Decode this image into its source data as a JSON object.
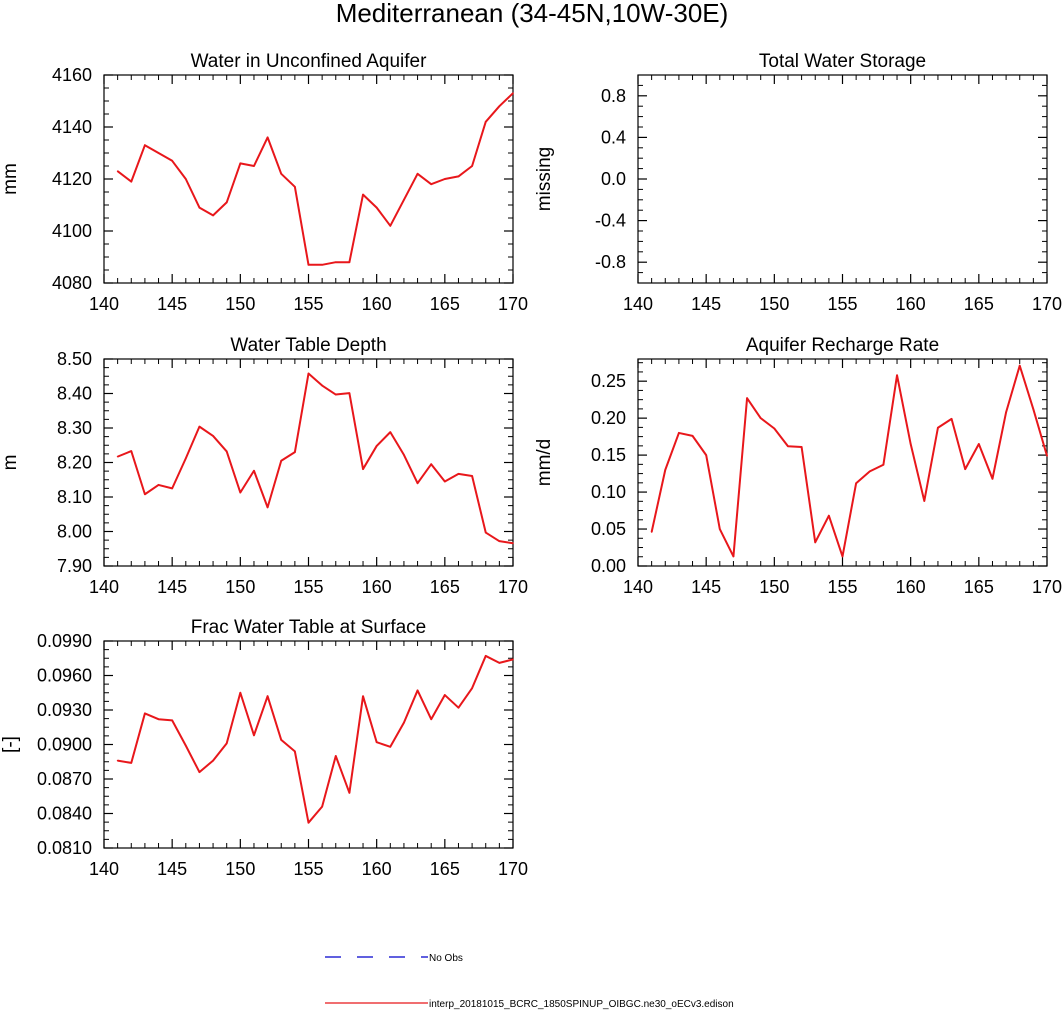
{
  "figure_title": "Mediterranean (34-45N,10W-30E)",
  "chart_data": [
    {
      "id": "unconfined",
      "type": "line",
      "title": "Water in Unconfined Aquifer",
      "xlabel": "",
      "ylabel": "mm",
      "xlim": [
        140,
        170
      ],
      "ylim": [
        4080,
        4160
      ],
      "xticks": [
        140,
        145,
        150,
        155,
        160,
        165,
        170
      ],
      "xtick_labels": [
        "140",
        "145",
        "150",
        "155",
        "160",
        "165",
        "170"
      ],
      "yticks": [
        4080,
        4100,
        4120,
        4140,
        4160
      ],
      "ytick_labels": [
        "4080",
        "4100",
        "4120",
        "4140",
        "4160"
      ],
      "series": [
        {
          "name": "interp_20181015_BCRC_1850SPINUP_OIBGC.ne30_oECv3.edison",
          "color": "#e8171b",
          "x": [
            141,
            142,
            143,
            144,
            145,
            146,
            147,
            148,
            149,
            150,
            151,
            152,
            153,
            154,
            155,
            156,
            157,
            158,
            159,
            160,
            161,
            162,
            163,
            164,
            165,
            166,
            167,
            168,
            169,
            170
          ],
          "values": [
            4123,
            4119,
            4133,
            4130,
            4127,
            4120,
            4109,
            4106,
            4111,
            4126,
            4125,
            4136,
            4122,
            4117,
            4087,
            4087,
            4088,
            4088,
            4114,
            4109,
            4102,
            4112,
            4122,
            4118,
            4120,
            4121,
            4125,
            4142,
            4148,
            4153
          ]
        }
      ]
    },
    {
      "id": "tws",
      "type": "line",
      "title": "Total Water Storage",
      "xlabel": "",
      "ylabel": "missing",
      "xlim": [
        140,
        170
      ],
      "ylim": [
        -1,
        1
      ],
      "xticks": [
        140,
        145,
        150,
        155,
        160,
        165,
        170
      ],
      "xtick_labels": [
        "140",
        "145",
        "150",
        "155",
        "160",
        "165",
        "170"
      ],
      "yticks": [
        -0.8,
        -0.4,
        0.0,
        0.4,
        0.8
      ],
      "ytick_labels": [
        "-0.8",
        "-0.4",
        "0.0",
        "0.4",
        "0.8"
      ],
      "series": []
    },
    {
      "id": "wtd",
      "type": "line",
      "title": "Water Table Depth",
      "xlabel": "",
      "ylabel": "m",
      "xlim": [
        140,
        170
      ],
      "ylim": [
        7.9,
        8.5
      ],
      "xticks": [
        140,
        145,
        150,
        155,
        160,
        165,
        170
      ],
      "xtick_labels": [
        "140",
        "145",
        "150",
        "155",
        "160",
        "165",
        "170"
      ],
      "yticks": [
        7.9,
        8.0,
        8.1,
        8.2,
        8.3,
        8.4,
        8.5
      ],
      "ytick_labels": [
        "7.90",
        "8.00",
        "8.10",
        "8.20",
        "8.30",
        "8.40",
        "8.50"
      ],
      "series": [
        {
          "name": "interp_20181015_BCRC_1850SPINUP_OIBGC.ne30_oECv3.edison",
          "color": "#e8171b",
          "x": [
            141,
            142,
            143,
            144,
            145,
            146,
            147,
            148,
            149,
            150,
            151,
            152,
            153,
            154,
            155,
            156,
            157,
            158,
            159,
            160,
            161,
            162,
            163,
            164,
            165,
            166,
            167,
            168,
            169,
            170
          ],
          "values": [
            8.217,
            8.233,
            8.108,
            8.135,
            8.125,
            8.212,
            8.304,
            8.277,
            8.232,
            8.113,
            8.176,
            8.07,
            8.205,
            8.23,
            8.458,
            8.423,
            8.397,
            8.401,
            8.181,
            8.248,
            8.288,
            8.222,
            8.14,
            8.195,
            8.145,
            8.167,
            8.161,
            7.997,
            7.972,
            7.966
          ]
        }
      ]
    },
    {
      "id": "recharge",
      "type": "line",
      "title": "Aquifer Recharge Rate",
      "xlabel": "",
      "ylabel": "mm/d",
      "xlim": [
        140,
        170
      ],
      "ylim": [
        0,
        0.28
      ],
      "xticks": [
        140,
        145,
        150,
        155,
        160,
        165,
        170
      ],
      "xtick_labels": [
        "140",
        "145",
        "150",
        "155",
        "160",
        "165",
        "170"
      ],
      "yticks": [
        0,
        0.05,
        0.1,
        0.15,
        0.2,
        0.25
      ],
      "ytick_labels": [
        "0.00",
        "0.05",
        "0.10",
        "0.15",
        "0.20",
        "0.25"
      ],
      "series": [
        {
          "name": "interp_20181015_BCRC_1850SPINUP_OIBGC.ne30_oECv3.edison",
          "color": "#e8171b",
          "x": [
            141,
            142,
            143,
            144,
            145,
            146,
            147,
            148,
            149,
            150,
            151,
            152,
            153,
            154,
            155,
            156,
            157,
            158,
            159,
            160,
            161,
            162,
            163,
            164,
            165,
            166,
            167,
            168,
            169,
            170
          ],
          "values": [
            0.046,
            0.13,
            0.18,
            0.176,
            0.15,
            0.05,
            0.013,
            0.227,
            0.2,
            0.186,
            0.162,
            0.161,
            0.032,
            0.068,
            0.013,
            0.112,
            0.128,
            0.137,
            0.258,
            0.165,
            0.088,
            0.187,
            0.199,
            0.131,
            0.165,
            0.118,
            0.208,
            0.271,
            0.212,
            0.149
          ]
        }
      ]
    },
    {
      "id": "frac",
      "type": "line",
      "title": "Frac Water Table at Surface",
      "xlabel": "",
      "ylabel": "[-]",
      "xlim": [
        140,
        170
      ],
      "ylim": [
        0.081,
        0.099
      ],
      "xticks": [
        140,
        145,
        150,
        155,
        160,
        165,
        170
      ],
      "xtick_labels": [
        "140",
        "145",
        "150",
        "155",
        "160",
        "165",
        "170"
      ],
      "yticks": [
        0.081,
        0.084,
        0.087,
        0.09,
        0.093,
        0.096,
        0.099
      ],
      "ytick_labels": [
        "0.0810",
        "0.0840",
        "0.0870",
        "0.0900",
        "0.0930",
        "0.0960",
        "0.0990"
      ],
      "series": [
        {
          "name": "interp_20181015_BCRC_1850SPINUP_OIBGC.ne30_oECv3.edison",
          "color": "#e8171b",
          "x": [
            141,
            142,
            143,
            144,
            145,
            146,
            147,
            148,
            149,
            150,
            151,
            152,
            153,
            154,
            155,
            156,
            157,
            158,
            159,
            160,
            161,
            162,
            163,
            164,
            165,
            166,
            167,
            168,
            169,
            170
          ],
          "values": [
            0.0886,
            0.0884,
            0.0927,
            0.0922,
            0.0921,
            0.0899,
            0.0876,
            0.0886,
            0.0901,
            0.0945,
            0.0908,
            0.0942,
            0.0904,
            0.0894,
            0.0832,
            0.0846,
            0.089,
            0.0858,
            0.0942,
            0.0902,
            0.0898,
            0.0919,
            0.0947,
            0.0922,
            0.0943,
            0.0932,
            0.0949,
            0.0977,
            0.0971,
            0.0974
          ]
        }
      ]
    }
  ],
  "legend": [
    {
      "label": "No Obs",
      "color": "#0000cc",
      "style": "dashed"
    },
    {
      "label": "interp_20181015_BCRC_1850SPINUP_OIBGC.ne30_oECv3.edison",
      "color": "#e8171b",
      "style": "solid"
    }
  ]
}
